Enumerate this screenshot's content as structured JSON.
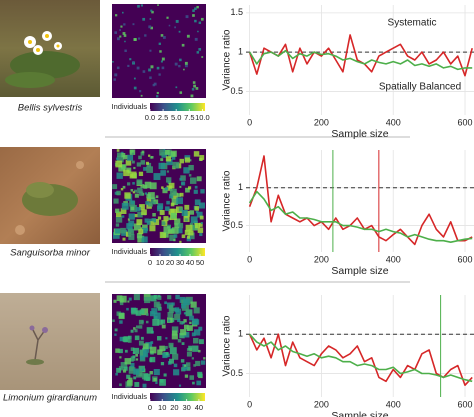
{
  "chart_data": [
    {
      "type": "line",
      "caption": "Bellis sylvestris",
      "colorbar": {
        "label": "Individuals",
        "lim": [
          0,
          10.5
        ],
        "ticks": [
          {
            "value": 0,
            "label": "0.0"
          },
          2.5,
          {
            "value": 5,
            "label": "5.0"
          },
          7.5,
          {
            "value": 10,
            "label": "10.0"
          }
        ]
      },
      "y_label": "Variance ratio",
      "x_label": "Sample size",
      "xlim": [
        -10,
        625
      ],
      "xticks": [
        0,
        200,
        400,
        600
      ],
      "ylim": [
        0.2,
        1.6
      ],
      "yticks": [
        0.5,
        1.0,
        1.5
      ],
      "grid": true,
      "reference_line": 1,
      "x": [
        0,
        20,
        40,
        60,
        80,
        100,
        120,
        140,
        160,
        180,
        200,
        220,
        240,
        260,
        280,
        300,
        320,
        340,
        360,
        380,
        400,
        420,
        440,
        460,
        480,
        500,
        520,
        540,
        560,
        580,
        600,
        620
      ],
      "series": [
        {
          "name": "Systematic",
          "color": "#d62728",
          "values": [
            1.0,
            0.72,
            1.05,
            1.0,
            0.95,
            1.1,
            0.75,
            1.05,
            0.85,
            1.0,
            0.95,
            1.05,
            0.9,
            0.75,
            1.22,
            0.9,
            0.85,
            0.75,
            0.95,
            1.0,
            1.05,
            1.1,
            0.95,
            0.9,
            1.0,
            0.85,
            0.9,
            1.0,
            0.85,
            0.95,
            0.7,
            1.05
          ]
        },
        {
          "name": "Spatially Balanced",
          "color": "#4daf4a",
          "values": [
            1.0,
            0.85,
            0.98,
            1.0,
            0.95,
            1.02,
            0.92,
            0.98,
            0.95,
            1.0,
            0.97,
            0.98,
            0.95,
            0.9,
            0.92,
            0.88,
            0.85,
            0.9,
            0.87,
            0.85,
            0.88,
            0.85,
            0.9,
            0.83,
            0.85,
            0.82,
            0.85,
            0.8,
            0.82,
            0.78,
            0.8,
            0.8
          ]
        }
      ]
    },
    {
      "type": "line",
      "caption": "Sanguisorba minor",
      "colorbar": {
        "label": "Individuals",
        "lim": [
          0,
          55
        ],
        "ticks": [
          0,
          10,
          20,
          30,
          40,
          50
        ]
      },
      "y_label": "Variance ratio",
      "x_label": "Sample size",
      "xlim": [
        -10,
        625
      ],
      "xticks": [
        0,
        200,
        400,
        600
      ],
      "ylim": [
        0.15,
        1.5
      ],
      "yticks": [
        0.5,
        1.0
      ],
      "grid": true,
      "reference_line": 1,
      "x": [
        0,
        20,
        40,
        60,
        80,
        100,
        120,
        140,
        160,
        180,
        200,
        220,
        240,
        260,
        280,
        300,
        320,
        340,
        360,
        380,
        400,
        420,
        440,
        460,
        480,
        500,
        520,
        540,
        560,
        580,
        600,
        620
      ],
      "series": [
        {
          "color": "#d62728",
          "vline": 360,
          "values": [
            0.75,
            1.0,
            1.42,
            0.55,
            0.9,
            0.65,
            0.6,
            0.55,
            0.6,
            0.5,
            0.55,
            0.45,
            0.6,
            0.45,
            0.5,
            0.6,
            0.45,
            0.5,
            0.35,
            0.3,
            0.38,
            0.45,
            0.35,
            0.25,
            0.5,
            0.65,
            0.45,
            0.35,
            0.55,
            0.3,
            0.3,
            0.35
          ]
        },
        {
          "color": "#4daf4a",
          "vline": 232,
          "values": [
            0.8,
            0.95,
            0.85,
            0.7,
            0.75,
            0.65,
            0.68,
            0.6,
            0.6,
            0.58,
            0.55,
            0.55,
            0.55,
            0.5,
            0.5,
            0.48,
            0.45,
            0.45,
            0.42,
            0.45,
            0.42,
            0.4,
            0.35,
            0.38,
            0.35,
            0.32,
            0.3,
            0.3,
            0.28,
            0.3,
            0.32,
            0.33
          ]
        }
      ]
    },
    {
      "type": "line",
      "caption": "Limonium girardianum",
      "colorbar": {
        "label": "Individuals",
        "lim": [
          0,
          45
        ],
        "ticks": [
          0,
          10,
          20,
          30,
          40
        ]
      },
      "y_label": "Variance ratio",
      "x_label": "Sample size",
      "xlim": [
        -10,
        625
      ],
      "xticks": [
        0,
        200,
        400,
        600
      ],
      "ylim": [
        0.2,
        1.5
      ],
      "yticks": [
        0.5,
        1.0
      ],
      "grid": true,
      "reference_line": 1,
      "x": [
        0,
        20,
        40,
        60,
        80,
        100,
        120,
        140,
        160,
        180,
        200,
        220,
        240,
        260,
        280,
        300,
        320,
        340,
        360,
        380,
        400,
        420,
        440,
        460,
        480,
        500,
        520,
        540,
        560,
        580,
        600,
        620
      ],
      "series": [
        {
          "color": "#d62728",
          "values": [
            1.0,
            0.8,
            0.95,
            0.7,
            1.0,
            0.6,
            0.9,
            0.7,
            0.65,
            0.6,
            0.75,
            0.85,
            0.8,
            0.7,
            0.75,
            0.85,
            0.65,
            0.7,
            0.45,
            0.4,
            0.55,
            0.45,
            0.6,
            0.55,
            0.75,
            0.8,
            0.5,
            0.45,
            0.55,
            0.6,
            0.35,
            0.45
          ]
        },
        {
          "color": "#4daf4a",
          "vline": 532,
          "values": [
            1.0,
            0.9,
            0.85,
            0.9,
            0.8,
            0.85,
            0.78,
            0.75,
            0.72,
            0.75,
            0.7,
            0.72,
            0.7,
            0.65,
            0.65,
            0.6,
            0.62,
            0.6,
            0.55,
            0.55,
            0.58,
            0.5,
            0.52,
            0.55,
            0.5,
            0.5,
            0.48,
            0.45,
            0.48,
            0.45,
            0.42,
            0.4
          ]
        }
      ]
    }
  ]
}
